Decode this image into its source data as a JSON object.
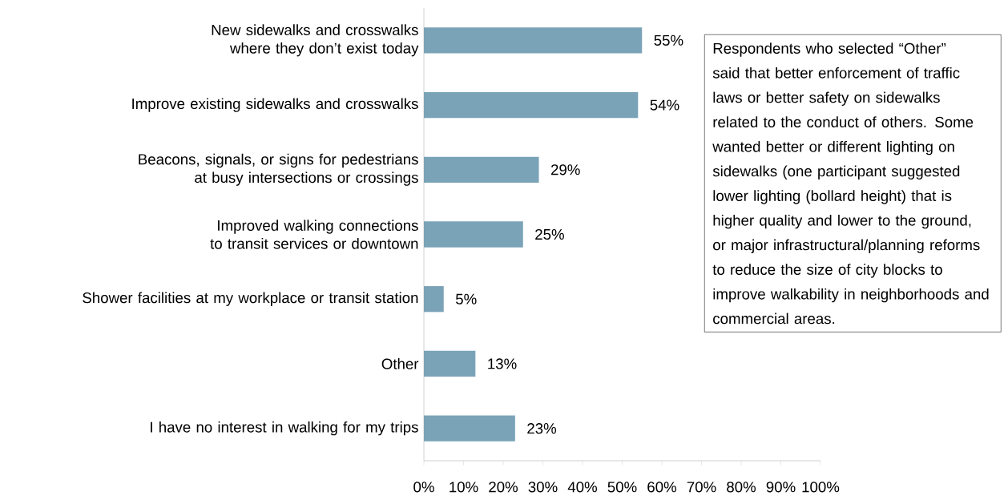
{
  "chart_data": {
    "type": "bar",
    "orientation": "horizontal",
    "categories": [
      "New sidewalks and crosswalks where they don’t exist today",
      "Improve existing sidewalks and crosswalks",
      "Beacons, signals, or signs for pedestrians at busy intersections or crossings",
      "Improved walking connections to transit services or downtown",
      "Shower facilities at my workplace or transit station",
      "Other",
      "I have no interest in walking for my trips"
    ],
    "values": [
      55,
      54,
      29,
      25,
      5,
      13,
      23
    ],
    "value_labels": [
      "55%",
      "54%",
      "29%",
      "25%",
      "5%",
      "13%",
      "23%"
    ],
    "color": "#7aa3b8",
    "xlim": [
      0,
      100
    ],
    "xticks": [
      {
        "value": 0,
        "label": "0%"
      },
      {
        "value": 10,
        "label": "10%"
      },
      {
        "value": 20,
        "label": "20%"
      },
      {
        "value": 30,
        "label": "30%"
      },
      {
        "value": 40,
        "label": "40%"
      },
      {
        "value": 50,
        "label": "50%"
      },
      {
        "value": 60,
        "label": "60%"
      },
      {
        "value": 70,
        "label": "70%"
      },
      {
        "value": 80,
        "label": "80%"
      },
      {
        "value": 90,
        "label": "90%"
      },
      {
        "value": 100,
        "label": "100%"
      }
    ],
    "annotations": [
      "Respondents who selected “Other” said that better enforcement of traffic laws or better safety on sidewalks related to the conduct of others. Some wanted better or different lighting on sidewalks (one participant suggested lower lighting (bollard height) that is higher quality and lower to the ground, or major infrastructural/planning reforms to reduce the size of city blocks to improve walkability in neighborhoods and commercial areas."
    ]
  }
}
